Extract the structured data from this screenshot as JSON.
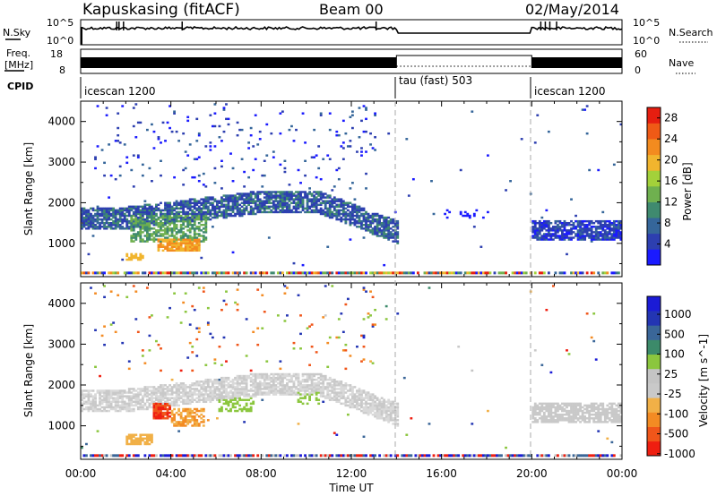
{
  "header": {
    "station": "Kapuskasing (fitACF)",
    "beam": "Beam 00",
    "date": "02/May/2014"
  },
  "params": {
    "nsky_label": "N.Sky",
    "nsearch_label": "N.Search",
    "noise_ticks": [
      "10^5",
      "10^0"
    ],
    "freq_label_1": "Freq.",
    "freq_label_2": "[MHz]",
    "freq_ticks": [
      "18",
      "8"
    ],
    "nave_label": "Nave",
    "nave_ticks": [
      "60",
      "0"
    ],
    "cpid_label": "CPID",
    "cpid_segments": [
      {
        "label": "icescan 1200",
        "start": "00:00",
        "end": "14:00"
      },
      {
        "label": "tau (fast) 503",
        "start": "14:00",
        "end": "20:00"
      },
      {
        "label": "icescan 1200",
        "start": "20:00",
        "end": "00:00"
      }
    ]
  },
  "colors": {
    "power_scale": [
      "#1a1aff",
      "#2d3fb0",
      "#35669a",
      "#3f8a6f",
      "#6fb04f",
      "#a3d13a",
      "#f1b52e",
      "#f38b1f",
      "#ef5a16",
      "#e61e10"
    ],
    "velocity_scale": [
      "#ef1e10",
      "#f0561a",
      "#f38b23",
      "#f1b047",
      "#c9c9c9",
      "#c4c4c4",
      "#8bc63e",
      "#3c8a6a",
      "#3a6698",
      "#2335b3",
      "#1b1bd6"
    ]
  },
  "chart_data": [
    {
      "type": "heatmap",
      "name": "power",
      "ylabel": "Slant Range [km]",
      "ylim": [
        180,
        4500
      ],
      "yticks": [
        "1000",
        "2000",
        "3000",
        "4000"
      ],
      "xlim": [
        "00:00",
        "24:00"
      ],
      "colorbar_label": "Power [dB]",
      "colorbar_ticks": [
        "4",
        "8",
        "12",
        "16",
        "20",
        "24",
        "28"
      ],
      "colorbar_range": [
        0,
        30
      ],
      "features": [
        {
          "desc": "main echo band",
          "time_start": 0.0,
          "time_end": 14.0,
          "range_km_at_start": 1550,
          "range_km_at_mid": 2000,
          "range_km_at_end": 1250,
          "power_db": 8
        },
        {
          "desc": "icescan late band",
          "time_start": 20.0,
          "time_end": 24.0,
          "range_km": 1300,
          "power_db": 8
        },
        {
          "desc": "near range enhancement",
          "time_start": 3.4,
          "time_end": 5.2,
          "range_km": 950,
          "power_db": 20
        }
      ]
    },
    {
      "type": "heatmap",
      "name": "velocity",
      "ylabel": "Slant Range [km]",
      "ylim": [
        180,
        4500
      ],
      "yticks": [
        "1000",
        "2000",
        "3000",
        "4000"
      ],
      "xlabel": "Time UT",
      "xticks": [
        "00:00",
        "04:00",
        "08:00",
        "12:00",
        "16:00",
        "20:00",
        "00:00"
      ],
      "colorbar_label": "Velocity [m s^-1]",
      "colorbar_ticks": [
        "1000",
        "500",
        "100",
        "25",
        "-25",
        "-100",
        "-500",
        "-1000"
      ],
      "features": [
        {
          "desc": "ground scatter band",
          "time_start": 0.0,
          "time_end": 14.0,
          "velocity_ms": 0
        },
        {
          "desc": "strong negative velocity patch",
          "time_start": 3.2,
          "time_end": 4.0,
          "range_km": 1300,
          "velocity_ms": -1000
        },
        {
          "desc": "moderate negative velocity",
          "time_start": 4.0,
          "time_end": 5.4,
          "range_km": 1150,
          "velocity_ms": -150
        },
        {
          "desc": "positive velocity patch",
          "time_start": 6.0,
          "time_end": 7.5,
          "range_km": 1500,
          "velocity_ms": 150
        }
      ]
    }
  ],
  "xaxis": {
    "ticks": [
      "00:00",
      "04:00",
      "08:00",
      "12:00",
      "16:00",
      "20:00",
      "00:00"
    ],
    "label": "Time UT"
  }
}
